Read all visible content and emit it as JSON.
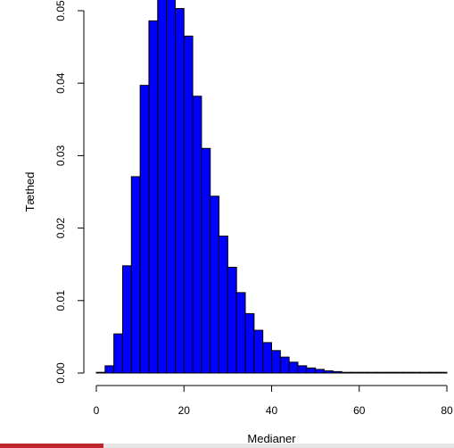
{
  "chart_data": {
    "type": "bar",
    "histogram": true,
    "title": "",
    "xlabel": "Medianer",
    "ylabel": "Tæthed",
    "xlim": [
      0,
      80
    ],
    "ylim": [
      0,
      0.05
    ],
    "xticks": [
      0,
      20,
      40,
      60,
      80
    ],
    "yticks": [
      0.0,
      0.01,
      0.02,
      0.03,
      0.04,
      0.05
    ],
    "ytick_labels": [
      "0.00",
      "0.01",
      "0.02",
      "0.03",
      "0.04",
      "0.05"
    ],
    "bin_width": 2,
    "bin_edges_start": 0,
    "values": [
      0.0001,
      0.001,
      0.0054,
      0.0148,
      0.0271,
      0.0397,
      0.0486,
      0.0523,
      0.0531,
      0.0503,
      0.0465,
      0.0382,
      0.031,
      0.0244,
      0.0189,
      0.0146,
      0.0111,
      0.0082,
      0.0059,
      0.0042,
      0.0031,
      0.0022,
      0.0015,
      0.001,
      0.0007,
      0.0005,
      0.0003,
      0.0002,
      0.0001,
      0.0001,
      0.0001,
      0.0001,
      0.0001,
      0.0001,
      0.0001,
      0.0001,
      0.0001,
      0.0001,
      0.0001,
      0.0001
    ],
    "bar_color": "#0000ff",
    "edge_color": "#000000"
  },
  "footer_colors": [
    "#c0272d",
    "#e6e6e6"
  ]
}
